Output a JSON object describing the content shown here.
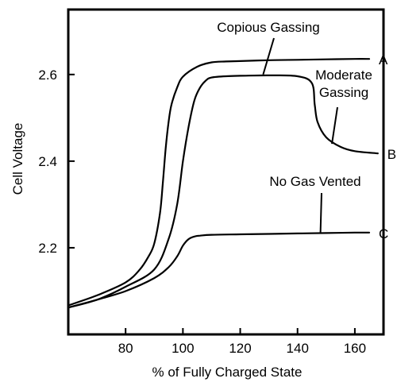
{
  "chart_data": {
    "type": "line",
    "xlabel": "% of Fully Charged State",
    "ylabel": "Cell Voltage",
    "xlim": [
      60,
      170
    ],
    "ylim": [
      2.0,
      2.75
    ],
    "xticks": [
      80,
      100,
      120,
      140,
      160
    ],
    "yticks": [
      2.2,
      2.4,
      2.6
    ],
    "x_tick_labels": [
      "80",
      "100",
      "120",
      "140",
      "160"
    ],
    "y_tick_labels": [
      "2.2",
      "2.4",
      "2.6"
    ],
    "grid": false,
    "legend": "none",
    "series": [
      {
        "name": "A",
        "x": [
          60,
          70,
          80,
          85,
          88,
          90,
          92,
          93,
          94,
          95,
          96,
          98,
          100,
          105,
          110,
          115,
          120,
          130,
          140,
          150,
          160,
          165
        ],
        "y": [
          2.067,
          2.09,
          2.12,
          2.15,
          2.18,
          2.21,
          2.28,
          2.35,
          2.43,
          2.49,
          2.53,
          2.57,
          2.595,
          2.618,
          2.628,
          2.63,
          2.631,
          2.633,
          2.634,
          2.635,
          2.636,
          2.636
        ]
      },
      {
        "name": "B",
        "x": [
          60,
          70,
          80,
          90,
          95,
          98,
          100,
          102,
          104,
          106,
          108,
          110,
          115,
          120,
          130,
          140,
          145,
          146,
          147,
          150,
          155,
          160,
          168
        ],
        "y": [
          2.062,
          2.08,
          2.11,
          2.15,
          2.22,
          2.3,
          2.4,
          2.48,
          2.54,
          2.57,
          2.586,
          2.593,
          2.596,
          2.597,
          2.598,
          2.596,
          2.58,
          2.53,
          2.49,
          2.455,
          2.433,
          2.423,
          2.418
        ]
      },
      {
        "name": "C",
        "x": [
          60,
          70,
          80,
          90,
          95,
          98,
          100,
          102,
          104,
          106,
          110,
          120,
          130,
          140,
          150,
          160,
          165
        ],
        "y": [
          2.062,
          2.08,
          2.1,
          2.13,
          2.155,
          2.18,
          2.205,
          2.22,
          2.226,
          2.228,
          2.23,
          2.231,
          2.232,
          2.233,
          2.234,
          2.235,
          2.235
        ]
      }
    ],
    "annotations": [
      {
        "id": "copious",
        "text": "Copious Gassing",
        "target": {
          "x": 128,
          "y": 2.6
        }
      },
      {
        "id": "moderate",
        "text": [
          "Moderate",
          "Gassing"
        ],
        "target": {
          "x": 152,
          "y": 2.44
        }
      },
      {
        "id": "nogas",
        "text": "No Gas Vented",
        "target": {
          "x": 148,
          "y": 2.234
        }
      }
    ]
  }
}
